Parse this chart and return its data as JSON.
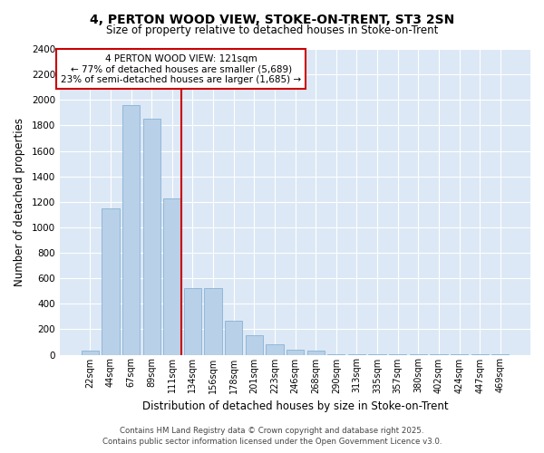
{
  "title_line1": "4, PERTON WOOD VIEW, STOKE-ON-TRENT, ST3 2SN",
  "title_line2": "Size of property relative to detached houses in Stoke-on-Trent",
  "xlabel": "Distribution of detached houses by size in Stoke-on-Trent",
  "ylabel": "Number of detached properties",
  "categories": [
    "22sqm",
    "44sqm",
    "67sqm",
    "89sqm",
    "111sqm",
    "134sqm",
    "156sqm",
    "178sqm",
    "201sqm",
    "223sqm",
    "246sqm",
    "268sqm",
    "290sqm",
    "313sqm",
    "335sqm",
    "357sqm",
    "380sqm",
    "402sqm",
    "424sqm",
    "447sqm",
    "469sqm"
  ],
  "values": [
    30,
    1150,
    1960,
    1850,
    1230,
    520,
    520,
    270,
    150,
    80,
    40,
    35,
    5,
    5,
    3,
    3,
    3,
    3,
    3,
    3,
    3
  ],
  "bar_color": "#b8d0e8",
  "bar_edge_color": "#7aaad0",
  "red_line_label": "4 PERTON WOOD VIEW: 121sqm",
  "annotation_line1": "← 77% of detached houses are smaller (5,689)",
  "annotation_line2": "23% of semi-detached houses are larger (1,685) →",
  "annotation_box_color": "#ffffff",
  "annotation_box_edge": "#cc0000",
  "ylim": [
    0,
    2400
  ],
  "yticks": [
    0,
    200,
    400,
    600,
    800,
    1000,
    1200,
    1400,
    1600,
    1800,
    2000,
    2200,
    2400
  ],
  "fig_bg_color": "#ffffff",
  "plot_bg_color": "#dce8f5",
  "grid_color": "#ffffff",
  "footer_line1": "Contains HM Land Registry data © Crown copyright and database right 2025.",
  "footer_line2": "Contains public sector information licensed under the Open Government Licence v3.0."
}
